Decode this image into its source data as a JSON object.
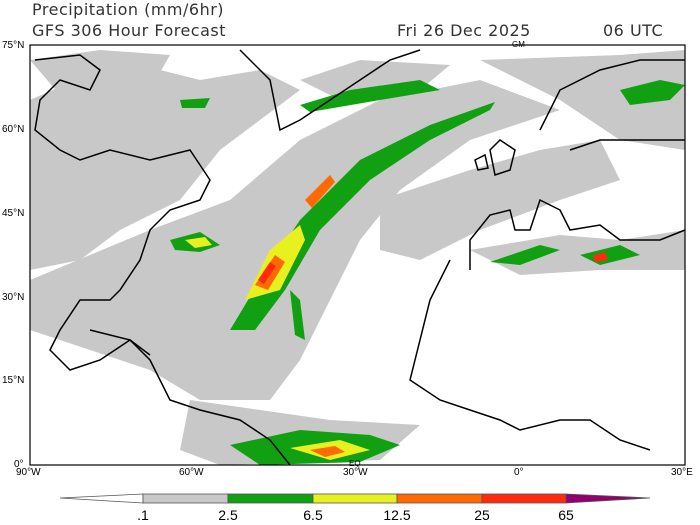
{
  "header": {
    "title": "Precipitation (mm/6hr)",
    "model": "GFS 306 Hour Forecast",
    "date": "Fri 26 Dec 2025",
    "time": "06 UTC"
  },
  "map": {
    "lat_labels": [
      "75°N",
      "60°N",
      "45°N",
      "30°N",
      "15°N",
      "0°"
    ],
    "lon_labels": [
      "90°W",
      "60°W",
      "30°W",
      "0°",
      "30°E"
    ],
    "markers": {
      "gm": "GM",
      "eq": "EQ"
    }
  },
  "legend": {
    "labels": [
      ".1",
      "2.5",
      "6.5",
      "12.5",
      "25",
      "65"
    ],
    "colors": [
      "#ffffff",
      "#c8c8c8",
      "#11a011",
      "#e8f020",
      "#ff6a00",
      "#ff2a10",
      "#900070"
    ]
  }
}
